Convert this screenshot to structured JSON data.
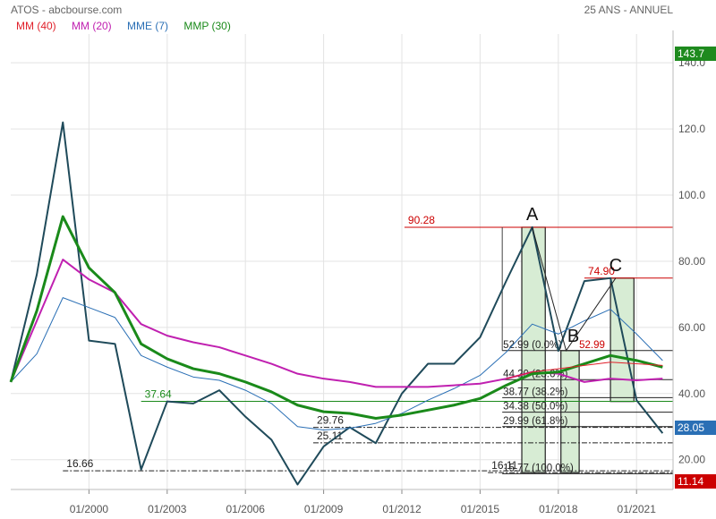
{
  "header": {
    "title": "ATOS - abcbourse.com",
    "period": "25 ANS - ANNUEL"
  },
  "legend": [
    {
      "label": "MM (40)",
      "color": "#e0202a"
    },
    {
      "label": "MM (20)",
      "color": "#c020b0"
    },
    {
      "label": "MME (7)",
      "color": "#2a6fb5"
    },
    {
      "label": "MMP (30)",
      "color": "#1a8a1a"
    }
  ],
  "price_tags": {
    "high": {
      "value": "143.7",
      "color": "#1e8a1e"
    },
    "last": {
      "value": "28.05",
      "color": "#2a6fb5"
    },
    "low": {
      "value": "11.14",
      "color": "#cc0000"
    }
  },
  "chart_data": {
    "type": "line",
    "title": "ATOS",
    "ylim": [
      11,
      146
    ],
    "xlim": [
      1997,
      2022.4
    ],
    "y_ticks": [
      "20.00",
      "40.00",
      "60.00",
      "80.00",
      "100.0",
      "120.0",
      "140.0"
    ],
    "x_ticks": [
      "01/2000",
      "01/2003",
      "01/2006",
      "01/2009",
      "01/2012",
      "01/2015",
      "01/2018",
      "01/2021"
    ],
    "series": [
      {
        "name": "",
        "color": "#1f4a5a",
        "width": 2,
        "x": [
          1997,
          1998,
          1999,
          2000,
          2001,
          2002,
          2003,
          2004,
          2005,
          2006,
          2007,
          2008,
          2009,
          2010,
          2011,
          2012,
          2013,
          2014,
          2015,
          2016,
          2017,
          2018,
          2019,
          2020,
          2021,
          2022
        ],
        "y": [
          43.5,
          76,
          122,
          56,
          55,
          17,
          37.6,
          37,
          41,
          33,
          26,
          12.5,
          24,
          29.8,
          25,
          40,
          49,
          49,
          57,
          74,
          90.3,
          52.9,
          74,
          74.9,
          38,
          28
        ]
      },
      {
        "name": "MME (7)",
        "color": "#2a6fb5",
        "width": 1,
        "x": [
          1997,
          1998,
          1999,
          2000,
          2001,
          2002,
          2003,
          2004,
          2005,
          2006,
          2007,
          2008,
          2009,
          2010,
          2011,
          2012,
          2013,
          2014,
          2015,
          2016,
          2017,
          2018,
          2019,
          2020,
          2021,
          2022
        ],
        "y": [
          43.5,
          52,
          69,
          66,
          63,
          51.5,
          48,
          45,
          44,
          41,
          37,
          30,
          29,
          29.5,
          31,
          34,
          38,
          41.5,
          45.5,
          52.5,
          61,
          58,
          62,
          65.5,
          58,
          50
        ]
      },
      {
        "name": "MM (20)",
        "color": "#c020b0",
        "width": 2,
        "x": [
          1997,
          1998,
          1999,
          2000,
          2001,
          2002,
          2003,
          2004,
          2005,
          2006,
          2007,
          2008,
          2009,
          2010,
          2011,
          2012,
          2013,
          2014,
          2015,
          2016,
          2017,
          2018,
          2019,
          2020,
          2021,
          2022
        ],
        "y": [
          43.5,
          62,
          80.5,
          74.5,
          70.5,
          61,
          57.5,
          55.5,
          54,
          51.5,
          49,
          46,
          44.5,
          43.5,
          42,
          42,
          42,
          42.5,
          43,
          44.5,
          46.5,
          46,
          43.5,
          44.5,
          44,
          44.5
        ]
      },
      {
        "name": "MMP (30)",
        "color": "#1a8a1a",
        "width": 3,
        "x": [
          1997,
          1998,
          1999,
          2000,
          2001,
          2002,
          2003,
          2004,
          2005,
          2006,
          2007,
          2008,
          2009,
          2010,
          2011,
          2012,
          2013,
          2014,
          2015,
          2016,
          2017,
          2018,
          2019,
          2020,
          2021,
          2022
        ],
        "y": [
          43.5,
          65,
          93.5,
          78,
          70.5,
          55,
          50.5,
          47.5,
          46,
          43.5,
          40.5,
          36.5,
          34.5,
          34,
          32.5,
          33.5,
          35,
          36.5,
          38.5,
          42.5,
          46,
          46.5,
          49,
          51.5,
          50,
          48
        ]
      },
      {
        "name": "MM (40)",
        "color": "#e0202a",
        "width": 1,
        "x": [
          2016,
          2017,
          2018,
          2019,
          2020,
          2021,
          2022
        ],
        "y": [
          44.5,
          46.5,
          47.5,
          48.5,
          49.5,
          49,
          48.5
        ]
      }
    ],
    "level_lines": [
      {
        "label": "90.28",
        "value": 90.28,
        "x_from": 2012.1,
        "x_to": 2022.4,
        "color": "#cc0000"
      },
      {
        "label": "74.90",
        "value": 74.9,
        "x_from": 2019,
        "x_to": 2022.4,
        "color": "#cc0000"
      },
      {
        "label": "37.64",
        "value": 37.64,
        "x_from": 2002,
        "x_to": 2022.4,
        "color": "#1a8a1a"
      },
      {
        "label": "29.76",
        "value": 29.76,
        "x_from": 2008.6,
        "x_to": 2022.4,
        "color": "#222222"
      },
      {
        "label": "25.11",
        "value": 25.11,
        "x_from": 2008.6,
        "x_to": 2022.4,
        "color": "#222222"
      },
      {
        "label": "16.66",
        "value": 16.66,
        "x_from": 1999,
        "x_to": 2022.4,
        "color": "#222222"
      },
      {
        "label": "16.11",
        "value": 16.11,
        "x_from": 2015.3,
        "x_to": 2022.4,
        "color": "#222222"
      }
    ],
    "fib_levels": [
      {
        "label": "52.99 (0.0%)",
        "value": 52.99
      },
      {
        "label": "44.20 (23.6%)",
        "value": 44.2
      },
      {
        "label": "38.77 (38.2%)",
        "value": 38.77
      },
      {
        "label": "34.38 (50.0%)",
        "value": 34.38
      },
      {
        "label": "29.99 (61.8%)",
        "value": 29.99
      },
      {
        "label": "15.77 (100.0%)",
        "value": 15.77
      }
    ],
    "extra_price_labels": [
      {
        "label": "52.99",
        "value": 52.99,
        "color": "#cc0000"
      }
    ],
    "points": [
      {
        "label": "A",
        "x": 2017,
        "y": 90.28
      },
      {
        "label": "B",
        "x": 2018.3,
        "y": 52.99
      },
      {
        "label": "C",
        "x": 2020.2,
        "y": 74.9
      }
    ],
    "boxes": [
      {
        "x_from": 2016.6,
        "x_to": 2017.5,
        "y_from": 90.28,
        "y_to": 16.11
      },
      {
        "x_from": 2018.1,
        "x_to": 2018.8,
        "y_from": 52.99,
        "y_to": 16.11
      },
      {
        "x_from": 2020.0,
        "x_to": 2020.9,
        "y_from": 74.9,
        "y_to": 37.6
      }
    ]
  }
}
